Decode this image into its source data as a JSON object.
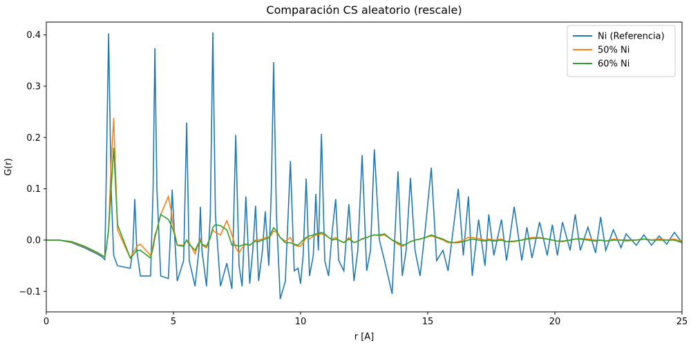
{
  "chart_data": {
    "type": "line",
    "title": "Comparación CS aleatorio (rescale)",
    "xlabel": "r [A]",
    "ylabel": "G(r)",
    "x": [
      0,
      0.5,
      1,
      1.5,
      2,
      2.2,
      2.3,
      2.35,
      2.45,
      2.55,
      2.65,
      2.8,
      3.3,
      3.4,
      3.48,
      3.56,
      3.7,
      4.1,
      4.2,
      4.27,
      4.35,
      4.5,
      4.8,
      4.9,
      4.95,
      5.02,
      5.15,
      5.4,
      5.52,
      5.62,
      5.85,
      6.0,
      6.06,
      6.12,
      6.3,
      6.45,
      6.55,
      6.65,
      6.85,
      7.1,
      7.3,
      7.45,
      7.58,
      7.7,
      7.85,
      8.0,
      8.12,
      8.23,
      8.35,
      8.5,
      8.61,
      8.75,
      8.85,
      8.94,
      9.05,
      9.2,
      9.4,
      9.6,
      9.75,
      9.9,
      10.0,
      10.1,
      10.22,
      10.35,
      10.5,
      10.6,
      10.7,
      10.82,
      10.95,
      11.1,
      11.25,
      11.38,
      11.5,
      11.7,
      11.9,
      12.1,
      12.25,
      12.42,
      12.6,
      12.75,
      12.9,
      13.1,
      13.3,
      13.6,
      13.83,
      14.0,
      14.15,
      14.32,
      14.5,
      14.7,
      14.9,
      15.14,
      15.35,
      15.6,
      15.8,
      16.0,
      16.2,
      16.4,
      16.6,
      16.75,
      17.0,
      17.25,
      17.4,
      17.6,
      17.9,
      18.1,
      18.4,
      18.7,
      18.9,
      19.1,
      19.4,
      19.7,
      19.9,
      20.1,
      20.3,
      20.6,
      20.8,
      21.0,
      21.3,
      21.6,
      21.8,
      22.0,
      22.3,
      22.6,
      22.8,
      23.2,
      23.5,
      23.8,
      24.1,
      24.4,
      24.7,
      25
    ],
    "series": [
      {
        "name": "Ni (Referencia)",
        "color": "#1f77b4",
        "values": [
          0,
          0,
          -0.005,
          -0.015,
          -0.027,
          -0.033,
          -0.038,
          0.1,
          0.403,
          0.1,
          -0.03,
          -0.05,
          -0.055,
          -0.02,
          0.08,
          -0.02,
          -0.07,
          -0.07,
          0.1,
          0.374,
          0.1,
          -0.07,
          -0.075,
          0.03,
          0.098,
          0.03,
          -0.08,
          -0.04,
          0.229,
          -0.04,
          -0.09,
          -0.02,
          0.065,
          -0.02,
          -0.09,
          0.05,
          0.405,
          0.05,
          -0.09,
          -0.045,
          -0.095,
          0.205,
          -0.05,
          -0.09,
          0.085,
          -0.085,
          -0.02,
          0.067,
          -0.08,
          -0.02,
          0.056,
          -0.05,
          0.1,
          0.347,
          0.05,
          -0.115,
          -0.08,
          0.154,
          -0.06,
          -0.055,
          -0.085,
          -0.03,
          0.12,
          -0.07,
          -0.03,
          0.09,
          -0.02,
          0.207,
          -0.04,
          -0.07,
          0.02,
          0.08,
          -0.04,
          -0.06,
          0.07,
          -0.08,
          -0.02,
          0.166,
          -0.06,
          -0.02,
          0.177,
          0.0,
          -0.04,
          -0.105,
          0.134,
          -0.07,
          -0.02,
          0.121,
          -0.02,
          -0.07,
          0.02,
          0.141,
          -0.04,
          -0.02,
          -0.06,
          0.02,
          0.1,
          -0.03,
          0.085,
          -0.07,
          0.04,
          -0.05,
          0.05,
          -0.03,
          0.04,
          -0.04,
          0.065,
          -0.04,
          0.025,
          -0.035,
          0.035,
          -0.03,
          0.03,
          -0.03,
          0.035,
          -0.02,
          0.05,
          -0.02,
          0.025,
          -0.025,
          0.045,
          -0.02,
          0.02,
          -0.015,
          0.012,
          -0.01,
          0.01,
          -0.01,
          0.008,
          -0.008,
          0.015,
          -0.005
        ]
      },
      {
        "name": "50% Ni",
        "color": "#ff7f0e",
        "values": [
          0,
          0,
          -0.004,
          -0.013,
          -0.025,
          -0.03,
          -0.033,
          -0.02,
          0.02,
          0.15,
          0.238,
          0.02,
          -0.035,
          -0.025,
          -0.02,
          -0.012,
          -0.008,
          -0.03,
          -0.01,
          0.01,
          0.02,
          0.05,
          0.085,
          0.06,
          0.04,
          0.02,
          -0.01,
          -0.01,
          0.0,
          -0.005,
          -0.027,
          -0.005,
          0.002,
          -0.01,
          -0.015,
          0.005,
          0.02,
          0.015,
          0.01,
          0.038,
          0.01,
          -0.015,
          -0.025,
          -0.015,
          -0.008,
          -0.01,
          -0.005,
          0.0,
          0.0,
          0.002,
          0.005,
          0.003,
          0.01,
          0.018,
          0.015,
          0.005,
          -0.002,
          0.005,
          -0.01,
          -0.012,
          -0.012,
          -0.005,
          0.005,
          0.002,
          0.008,
          0.01,
          0.01,
          0.012,
          0.01,
          0.005,
          0.002,
          0.005,
          0.0,
          -0.005,
          0.005,
          -0.005,
          -0.003,
          0.003,
          0.005,
          0.008,
          0.01,
          0.008,
          0.01,
          0.0,
          -0.008,
          -0.012,
          -0.008,
          -0.003,
          0.0,
          0.002,
          0.005,
          0.008,
          0.005,
          0.0,
          -0.005,
          -0.005,
          -0.003,
          0.0,
          0.005,
          0.005,
          0.003,
          0.0,
          0.002,
          0.0,
          0.002,
          -0.003,
          -0.003,
          0.0,
          0.003,
          0.005,
          0.005,
          0.002,
          0.0,
          -0.002,
          -0.003,
          0.0,
          0.002,
          0.003,
          0.002,
          0.0,
          0.0,
          -0.002,
          0.002,
          0.0,
          -0.002,
          0.0,
          0.002,
          0.0,
          0.002,
          0.0,
          0.002,
          -0.003
        ]
      },
      {
        "name": "60% Ni",
        "color": "#2ca02c",
        "values": [
          0,
          0,
          -0.003,
          -0.012,
          -0.024,
          -0.03,
          -0.033,
          -0.02,
          0.02,
          0.1,
          0.18,
          0.03,
          -0.035,
          -0.03,
          -0.025,
          -0.02,
          -0.02,
          -0.035,
          -0.015,
          0.005,
          0.02,
          0.05,
          0.04,
          0.03,
          0.025,
          0.015,
          -0.01,
          -0.012,
          0.0,
          -0.008,
          -0.02,
          -0.005,
          -0.002,
          -0.008,
          -0.012,
          0.005,
          0.025,
          0.03,
          0.028,
          0.02,
          -0.01,
          -0.01,
          -0.012,
          -0.01,
          -0.008,
          -0.01,
          -0.005,
          -0.002,
          -0.003,
          0.0,
          0.002,
          0.005,
          0.015,
          0.024,
          0.018,
          0.005,
          -0.005,
          -0.005,
          -0.008,
          -0.01,
          -0.005,
          0.0,
          0.005,
          0.008,
          0.01,
          0.012,
          0.012,
          0.015,
          0.012,
          0.005,
          0.0,
          0.002,
          0.0,
          -0.005,
          0.002,
          -0.005,
          -0.002,
          0.002,
          0.005,
          0.008,
          0.01,
          0.01,
          0.012,
          0.0,
          -0.005,
          -0.01,
          -0.008,
          -0.003,
          0.0,
          0.002,
          0.005,
          0.01,
          0.006,
          0.002,
          -0.003,
          -0.005,
          -0.005,
          -0.003,
          0.0,
          0.002,
          0.0,
          -0.002,
          0.0,
          -0.002,
          0.0,
          -0.003,
          -0.002,
          0.0,
          0.002,
          0.003,
          0.004,
          0.002,
          0.0,
          -0.002,
          -0.002,
          0.0,
          0.002,
          0.002,
          0.0,
          -0.002,
          0.0,
          -0.002,
          0.0,
          0.0,
          0.0,
          0.0,
          0.002,
          0.0,
          0.0,
          0.0,
          0.0,
          -0.005
        ]
      }
    ],
    "xlim": [
      0,
      25
    ],
    "ylim": [
      -0.14,
      0.425
    ],
    "xticks": [
      0,
      5,
      10,
      15,
      20,
      25
    ],
    "yticks": [
      {
        "value": -0.1,
        "label": "−0.1"
      },
      {
        "value": 0,
        "label": "0.0"
      },
      0.1,
      0.2,
      0.3,
      0.4
    ],
    "grid": false,
    "legend": "upper right"
  }
}
